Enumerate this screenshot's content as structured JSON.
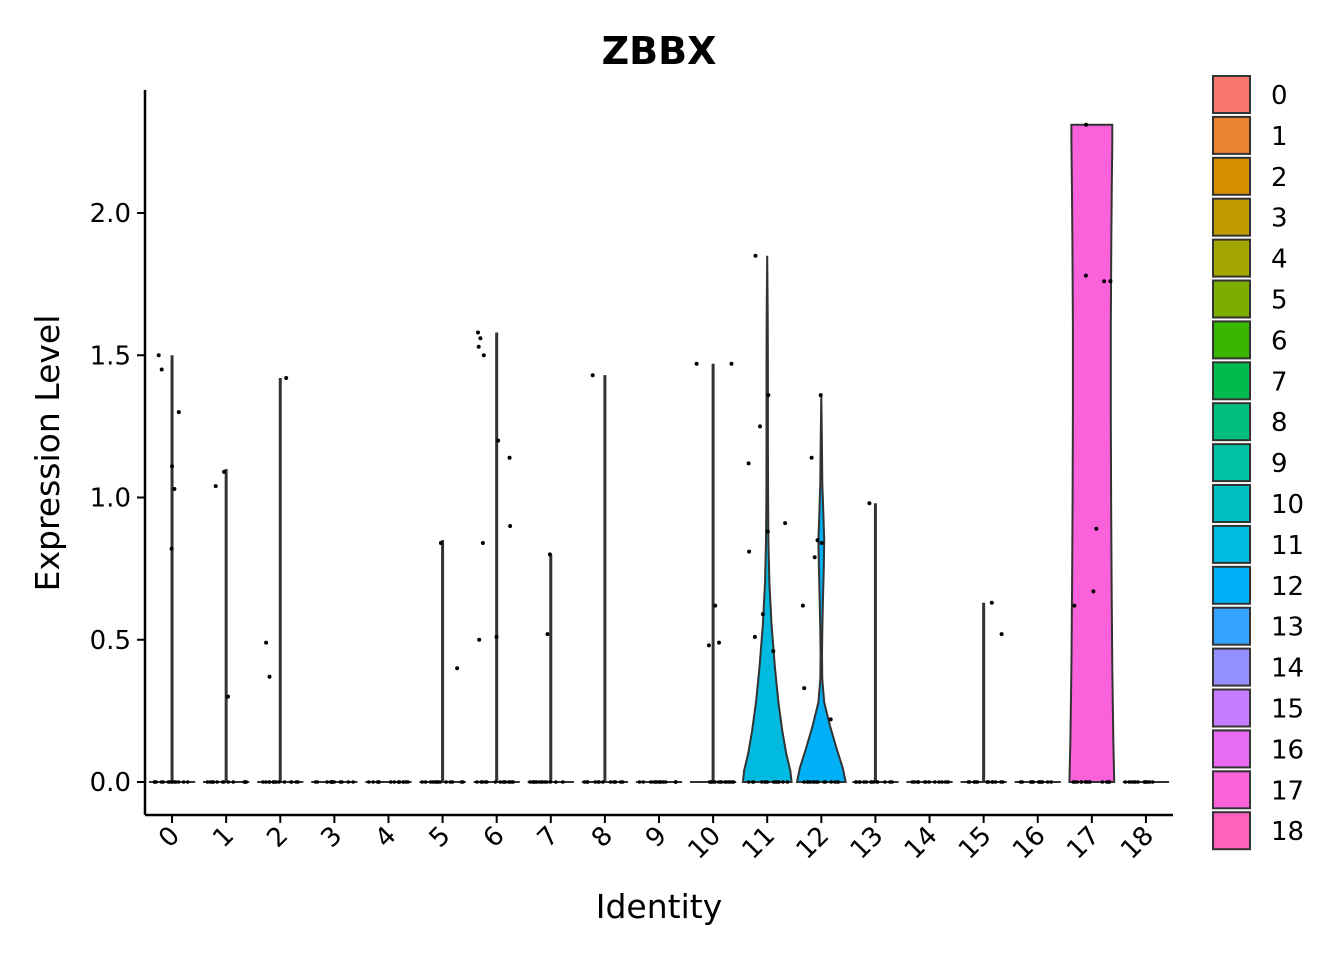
{
  "chart_data": {
    "type": "violin",
    "title": "ZBBX",
    "xlabel": "Identity",
    "ylabel": "Expression Level",
    "ylim": [
      -0.115,
      2.42
    ],
    "yticks": [
      "0.0",
      "0.5",
      "1.0",
      "1.5",
      "2.0"
    ],
    "categories": [
      "0",
      "1",
      "2",
      "3",
      "4",
      "5",
      "6",
      "7",
      "8",
      "9",
      "10",
      "11",
      "12",
      "13",
      "14",
      "15",
      "16",
      "17",
      "18"
    ],
    "colors": [
      "#F8766D",
      "#EA8331",
      "#D89000",
      "#C09B00",
      "#A3A500",
      "#7CAE00",
      "#39B600",
      "#00BB4E",
      "#00BF7D",
      "#00C1A3",
      "#00BFC4",
      "#00BAE0",
      "#00B0F6",
      "#35A2FF",
      "#9590FF",
      "#C77CFF",
      "#E76BF3",
      "#FA62DB",
      "#FF62BC"
    ],
    "legend_position": "right",
    "series": [
      {
        "name": "0",
        "max": 1.5,
        "points": [
          1.11,
          1.45,
          1.3,
          1.5,
          1.03,
          0.82
        ]
      },
      {
        "name": "1",
        "max": 1.1,
        "points": [
          1.09,
          1.04,
          0.3
        ]
      },
      {
        "name": "2",
        "max": 1.42,
        "points": [
          1.42,
          0.49,
          0.37
        ]
      },
      {
        "name": "3",
        "max": 0.0,
        "points": []
      },
      {
        "name": "4",
        "max": 0.0,
        "points": []
      },
      {
        "name": "5",
        "max": 0.85,
        "points": [
          0.84,
          0.4
        ]
      },
      {
        "name": "6",
        "max": 1.58,
        "points": [
          1.5,
          1.53,
          1.56,
          1.58,
          1.2,
          1.14,
          0.9,
          0.84,
          0.51,
          0.5
        ]
      },
      {
        "name": "7",
        "max": 0.8,
        "points": [
          0.8,
          0.52
        ]
      },
      {
        "name": "8",
        "max": 1.43,
        "points": [
          1.43
        ]
      },
      {
        "name": "9",
        "max": 0.0,
        "points": []
      },
      {
        "name": "10",
        "max": 1.47,
        "points": [
          1.47,
          1.47,
          0.62,
          0.49,
          0.48
        ]
      },
      {
        "name": "11",
        "max": 1.85,
        "points": [
          1.85,
          1.36,
          1.25,
          1.12,
          0.91,
          0.88,
          0.81,
          0.59,
          0.51,
          0.46
        ]
      },
      {
        "name": "12",
        "max": 1.36,
        "points": [
          1.36,
          1.14,
          0.85,
          0.84,
          0.79,
          0.62,
          0.33,
          0.22
        ]
      },
      {
        "name": "13",
        "max": 0.98,
        "points": [
          0.98
        ]
      },
      {
        "name": "14",
        "max": 0.0,
        "points": []
      },
      {
        "name": "15",
        "max": 0.63,
        "points": [
          0.63,
          0.52
        ]
      },
      {
        "name": "16",
        "max": 0.0,
        "points": []
      },
      {
        "name": "17",
        "max": 2.31,
        "points": [
          2.31,
          1.78,
          1.76,
          1.76,
          0.89,
          0.67,
          0.62
        ]
      },
      {
        "name": "18",
        "max": 0.0,
        "points": []
      }
    ]
  }
}
